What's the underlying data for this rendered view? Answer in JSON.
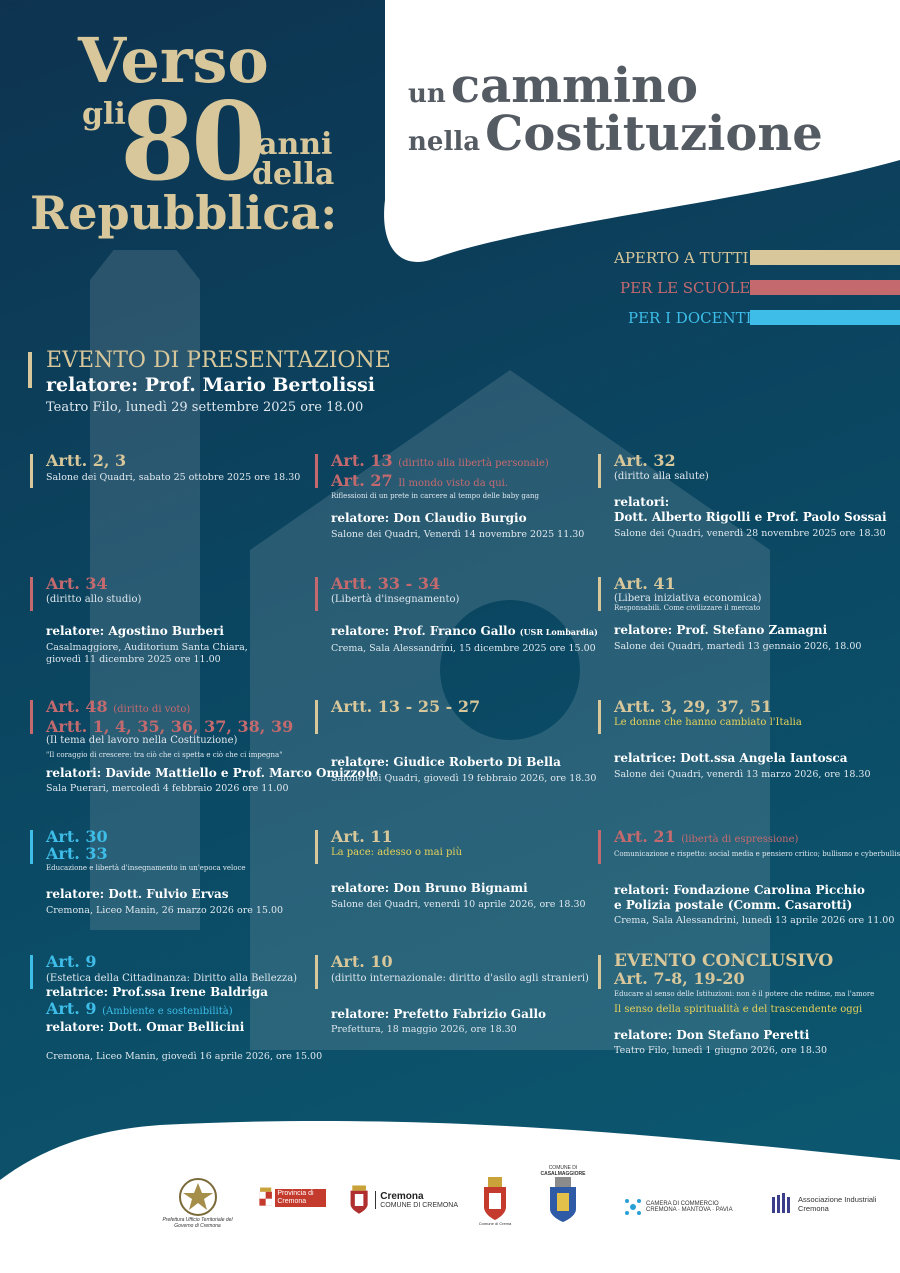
{
  "title_left": {
    "verso": "Verso",
    "gli": "gli",
    "number": "80",
    "anni": "anni",
    "della": "della",
    "repubblica": "Repubblica:"
  },
  "title_right": {
    "un": "un",
    "cammino": "cammino",
    "nella": "nella",
    "costituzione": "Costituzione"
  },
  "audience": [
    {
      "label": "APERTO A TUTTI",
      "color": "#d8c79a"
    },
    {
      "label": "PER LE SCUOLE",
      "color": "#c46a6e"
    },
    {
      "label": "PER I DOCENTI",
      "color": "#3dbde8"
    }
  ],
  "presentation": {
    "title": "EVENTO DI PRESENTAZIONE",
    "speaker": "relatore: Prof. Mario Bertolissi",
    "venue": "Teatro Filo, lunedì 29 settembre 2025 ore 18.00"
  },
  "events": [
    {
      "art": "Artt. 2, 3",
      "venue": "Salone dei Quadri, sabato 25 ottobre 2025 ore 18.30"
    },
    {
      "art1": "Art. 13",
      "art1_note": "(diritto alla libertà personale)",
      "art2": "Art. 27",
      "art2_note": "Il mondo visto da qui.",
      "sub": "Riflessioni di un prete in carcere al tempo delle baby gang",
      "speaker": "relatore: Don Claudio Burgio",
      "venue": "Salone dei Quadri, Venerdì 14 novembre 2025 11.30"
    },
    {
      "art": "Art. 32",
      "sub": "(diritto alla salute)",
      "speaker_label": "relatori:",
      "speaker": "Dott. Alberto Rigolli e Prof. Paolo Sossai",
      "venue": "Salone dei Quadri, venerdì 28 novembre 2025 ore 18.30"
    },
    {
      "art": "Art. 34",
      "sub": "(diritto allo studio)",
      "speaker": "relatore: Agostino Burberi",
      "venue1": "Casalmaggiore, Auditorium Santa Chiara,",
      "venue2": "giovedì 11 dicembre 2025 ore 11.00"
    },
    {
      "art": "Artt. 33 - 34",
      "sub": "(Libertà d'insegnamento)",
      "speaker": "relatore: Prof. Franco Gallo",
      "speaker_note": "(USR Lombardia)",
      "venue": "Crema, Sala Alessandrini, 15 dicembre 2025 ore 15.00"
    },
    {
      "art": "Art. 41",
      "sub": "(Libera iniziativa economica)",
      "sub2": "Responsabili. Come civilizzare il mercato",
      "speaker": "relatore: Prof. Stefano Zamagni",
      "venue": "Salone dei Quadri, martedì 13 gennaio 2026, 18.00"
    },
    {
      "art1": "Art. 48",
      "art1_note": "(diritto di voto)",
      "art2": "Artt. 1, 4, 35, 36, 37, 38, 39",
      "sub": "(Il tema del lavoro nella Costituzione)",
      "sub2": "\"Il coraggio di crescere: tra ciò che ci spetta e ciò che ci impegna\"",
      "speaker": "relatori: Davide Mattiello e Prof. Marco Omizzolo",
      "venue": "Sala Puerari, mercoledì 4 febbraio 2026 ore 11.00"
    },
    {
      "art": "Artt. 13 - 25 - 27",
      "speaker": "relatore: Giudice Roberto Di Bella",
      "venue": "Salone dei Quadri, giovedì 19 febbraio 2026, ore 18.30"
    },
    {
      "art": "Artt. 3, 29, 37, 51",
      "sub": "Le donne che hanno cambiato l'Italia",
      "speaker": "relatrice: Dott.ssa Angela Iantosca",
      "venue": "Salone dei Quadri, venerdì 13 marzo 2026, ore 18.30"
    },
    {
      "art1": "Art. 30",
      "art2": "Art. 33",
      "sub": "Educazione e libertà d'insegnamento in un'epoca veloce",
      "speaker": "relatore: Dott. Fulvio Ervas",
      "venue": "Cremona, Liceo Manin, 26 marzo 2026 ore 15.00"
    },
    {
      "art": "Art. 11",
      "sub": "La pace: adesso o mai più",
      "speaker": "relatore: Don Bruno Bignami",
      "venue": "Salone dei Quadri, venerdì 10 aprile 2026, ore 18.30"
    },
    {
      "art": "Art. 21",
      "art_note": "(libertà di espressione)",
      "sub": "Comunicazione e rispetto: social media e pensiero critico; bullismo e cyberbullismo",
      "speaker1": "relatori: Fondazione Carolina Picchio",
      "speaker2": "e Polizia postale (Comm. Casarotti)",
      "venue": "Crema, Sala Alessandrini, lunedì 13 aprile 2026 ore 11.00"
    },
    {
      "art1": "Art. 9",
      "sub1": "(Estetica della Cittadinanza: Diritto alla Bellezza)",
      "speaker1": "relatrice: Prof.ssa Irene Baldriga",
      "art2": "Art. 9",
      "art2_note": "(Ambiente e sostenibilità)",
      "speaker2": "relatore: Dott. Omar Bellicini",
      "venue": "Cremona, Liceo Manin, giovedì 16 aprile 2026, ore 15.00"
    },
    {
      "art": "Art. 10",
      "sub": "(diritto internazionale: diritto d'asilo agli stranieri)",
      "speaker": "relatore: Prefetto Fabrizio Gallo",
      "venue": "Prefettura, 18 maggio 2026, ore 18.30"
    },
    {
      "title": "EVENTO CONCLUSIVO",
      "art": "Art. 7-8, 19-20",
      "sub": "Educare al senso delle Istituzioni: non è il potere che redime, ma l'amore",
      "sub2": "Il senso della spiritualità e del trascendente oggi",
      "speaker": "relatore: Don Stefano Peretti",
      "venue": "Teatro Filo, lunedì 1 giugno 2026, ore 18.30"
    }
  ],
  "logos": {
    "prefettura": "Prefettura Ufficio Territoriale del Governo di Cremona",
    "provincia": "Provincia di Cremona",
    "cremona_title": "Cremona",
    "cremona_sub": "COMUNE DI CREMONA",
    "crema": "Comune di Crema",
    "casal_top": "COMUNE DI",
    "casal_name": "CASALMAGGIORE",
    "camera1": "CAMERA DI COMMERCIO",
    "camera2": "CREMONA · MANTOVA · PAVIA",
    "assoc1": "Associazione Industriali",
    "assoc2": "Cremona"
  }
}
